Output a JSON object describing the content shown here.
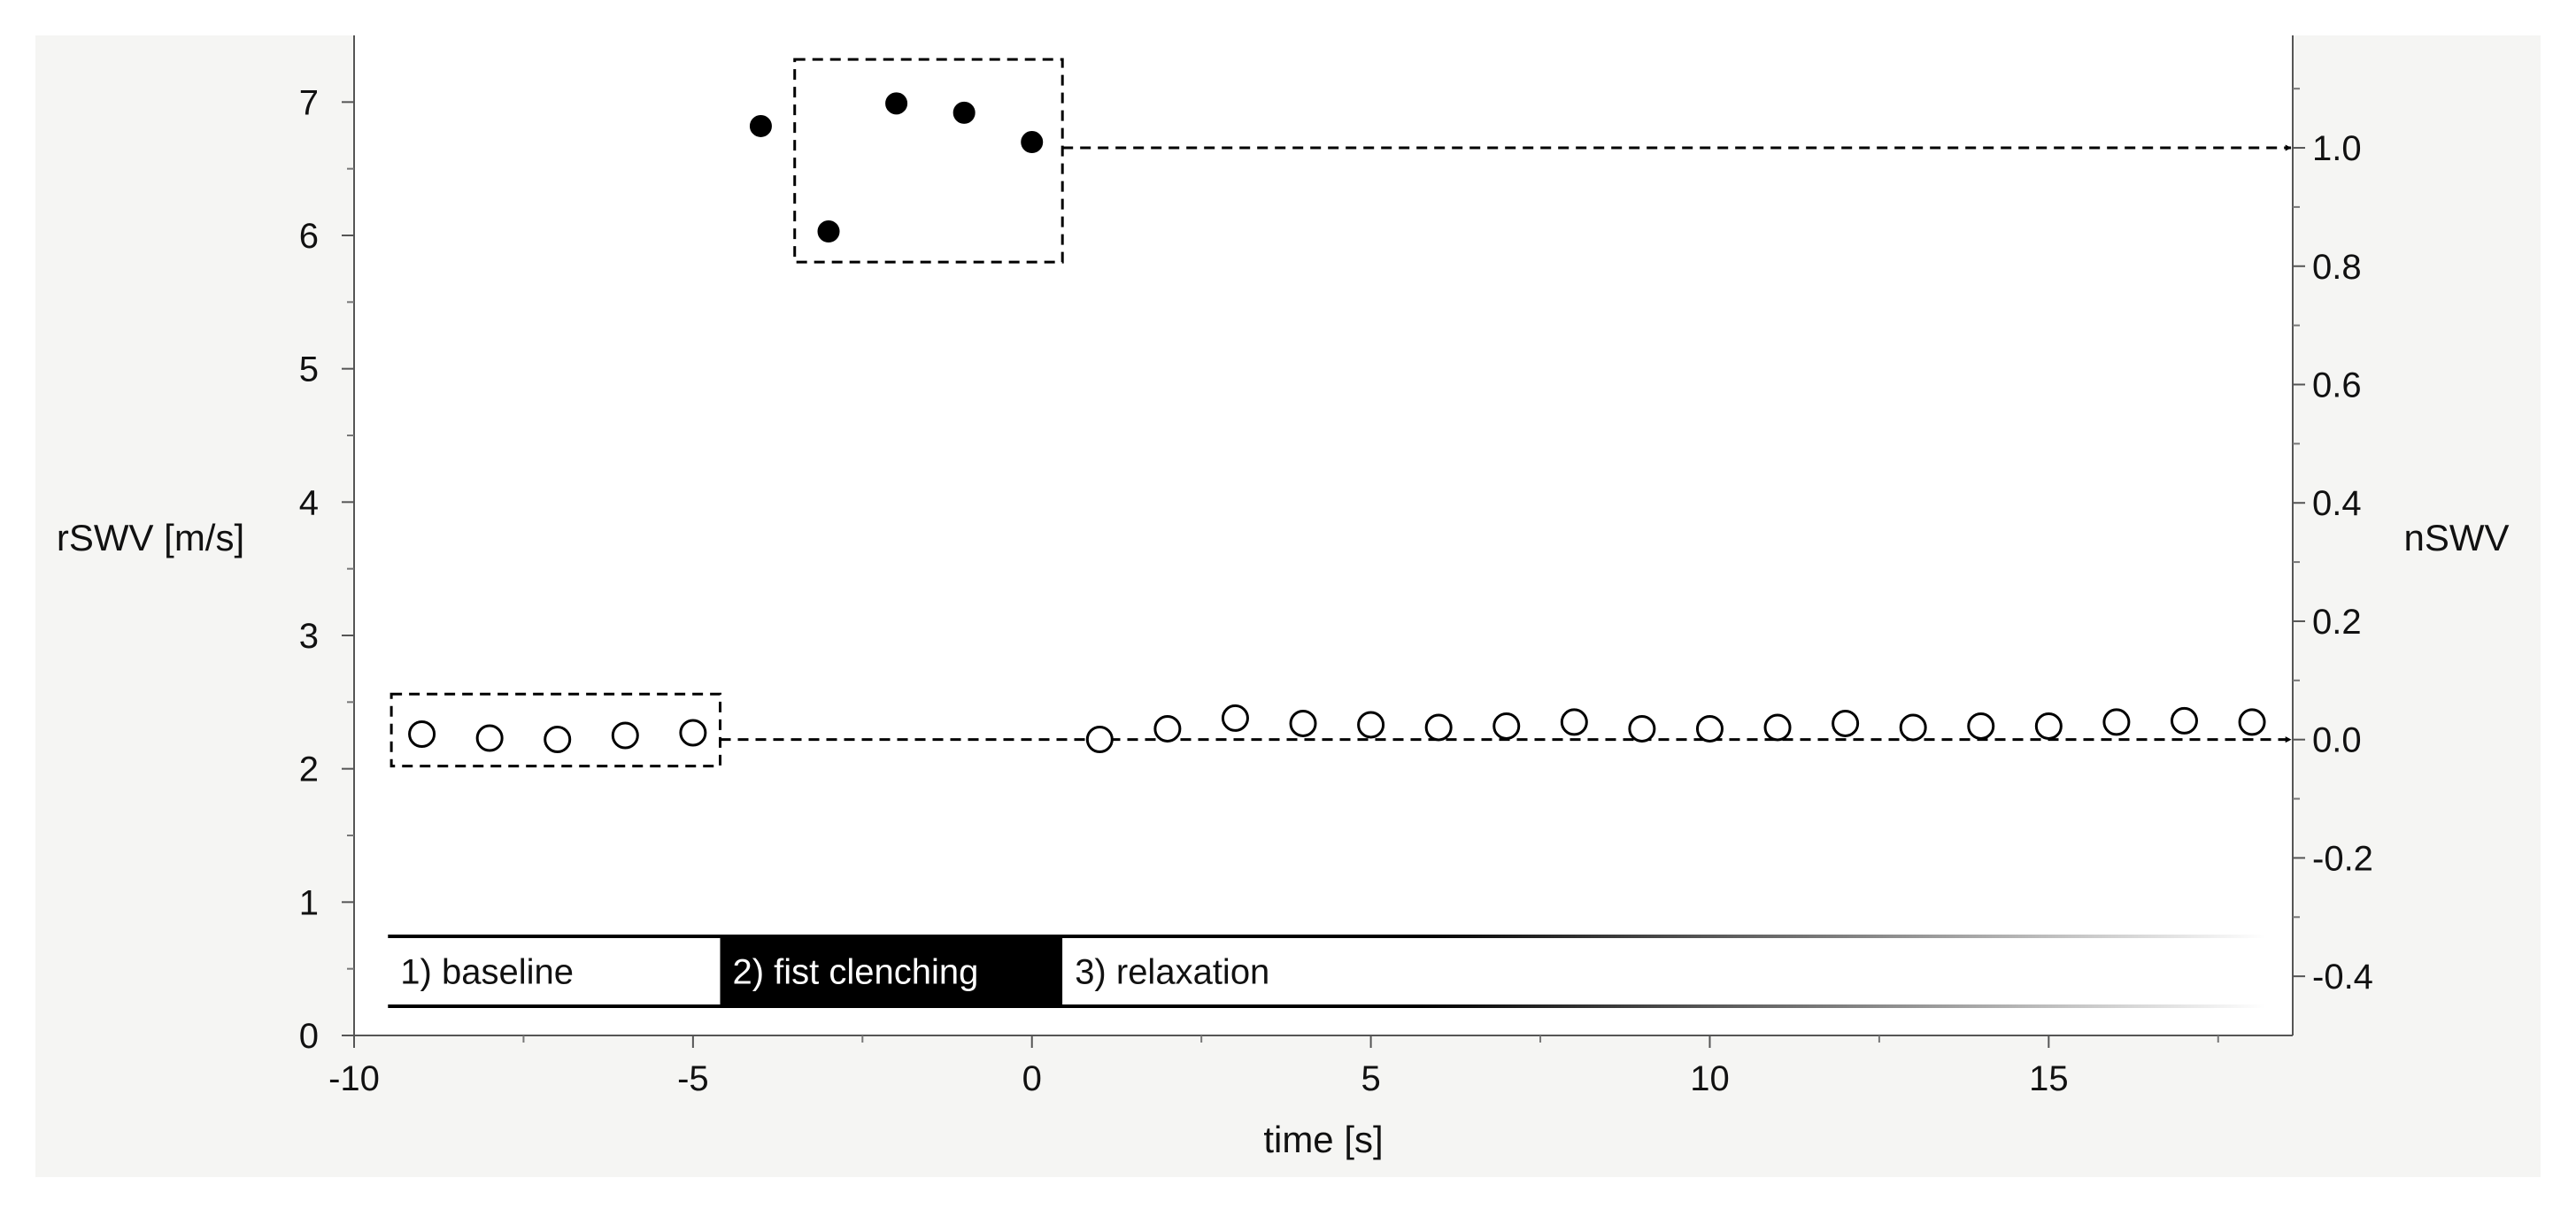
{
  "chart_data": {
    "type": "scatter",
    "xlabel": "time [s]",
    "ylabel": "rSWV [m/s]",
    "y2label": "nSWV",
    "xlim": [
      -10,
      18.6
    ],
    "ylim": [
      0,
      7.5
    ],
    "y2lim": [
      -0.5,
      1.19
    ],
    "xticks": [
      -10,
      -5,
      0,
      5,
      10,
      15
    ],
    "xtick_labels": [
      "-10",
      "-5",
      "0",
      "5",
      "10",
      "15"
    ],
    "yticks": [
      0,
      1,
      2,
      3,
      4,
      5,
      6,
      7
    ],
    "ytick_labels": [
      "0",
      "1",
      "2",
      "3",
      "4",
      "5",
      "6",
      "7"
    ],
    "y2ticks": [
      -0.4,
      -0.2,
      0.0,
      0.2,
      0.4,
      0.6,
      0.8,
      1.0
    ],
    "y2tick_labels": [
      "-0.4",
      "-0.2",
      "0.0",
      "0.2",
      "0.4",
      "0.6",
      "0.8",
      "1.0"
    ],
    "grid": false,
    "series": [
      {
        "style": "open-circle",
        "x": [
          -9,
          -8,
          -7,
          -6,
          -5
        ],
        "y": [
          2.26,
          2.23,
          2.22,
          2.25,
          2.27
        ]
      },
      {
        "style": "filled-circle",
        "x": [
          -4,
          -3,
          -2,
          -1,
          0
        ],
        "y": [
          6.82,
          6.03,
          6.99,
          6.92,
          6.7
        ]
      },
      {
        "style": "open-circle",
        "x": [
          1,
          2,
          3,
          4,
          5,
          6,
          7,
          8,
          9,
          10,
          11,
          12,
          13,
          14,
          15,
          16,
          17,
          18
        ],
        "y": [
          2.22,
          2.3,
          2.38,
          2.34,
          2.33,
          2.31,
          2.32,
          2.35,
          2.3,
          2.3,
          2.31,
          2.34,
          2.31,
          2.32,
          2.32,
          2.35,
          2.36,
          2.35
        ]
      }
    ],
    "annotations": {
      "baseline_box": {
        "x": [
          -9.45,
          -4.6
        ],
        "y": [
          2.02,
          2.56
        ]
      },
      "clench_box": {
        "x": [
          -3.5,
          0.45
        ],
        "y": [
          5.8,
          7.32
        ]
      },
      "arrow_to_one": {
        "from_x": 0.45,
        "y2": 1.0
      },
      "arrow_to_zero": {
        "from_x": -4.6,
        "y2": 0.0
      }
    },
    "phases": [
      {
        "label": "1) baseline",
        "start": -9.5,
        "end": -4.6,
        "fill": "#ffffff",
        "text_color": "#111111"
      },
      {
        "label": "2) fist clenching",
        "start": -4.6,
        "end": 0.45,
        "fill": "#000000",
        "text_color": "#ffffff"
      },
      {
        "label": "3) relaxation",
        "start": 0.45,
        "end": 18.2,
        "fill": "#ffffff",
        "text_color": "#111111"
      }
    ]
  }
}
